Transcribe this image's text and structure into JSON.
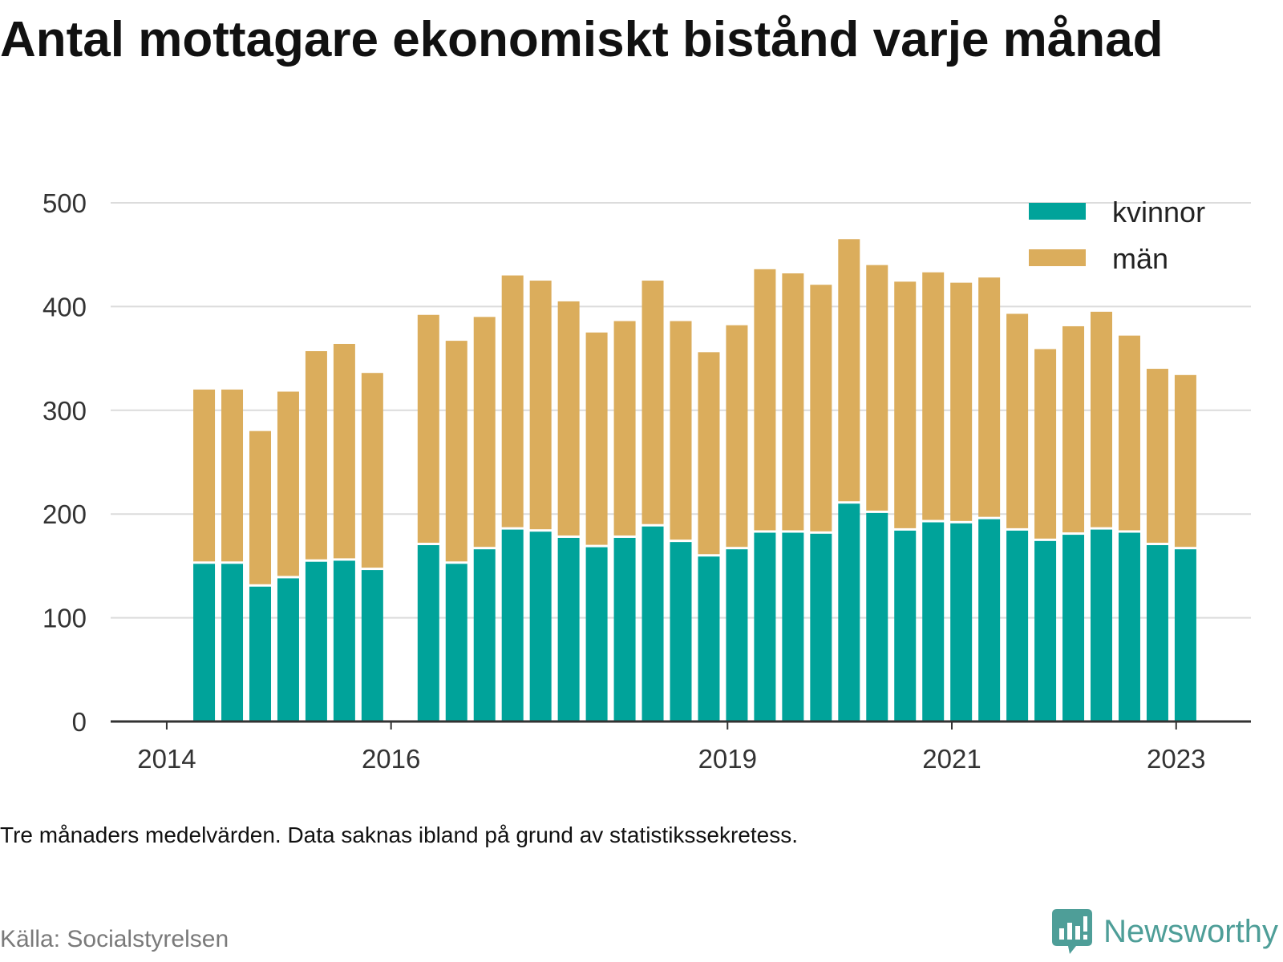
{
  "chart_data": {
    "type": "bar",
    "stacked": true,
    "title": "Antal mottagare ekonomiskt bistånd varje månad",
    "xlabel": "",
    "ylabel": "",
    "x": [
      "2014-05",
      "2014-08",
      "2014-11",
      "2015-02",
      "2015-05",
      "2015-08",
      "2015-11",
      "2016-05",
      "2016-08",
      "2016-11",
      "2017-02",
      "2017-05",
      "2017-08",
      "2017-11",
      "2018-02",
      "2018-05",
      "2018-08",
      "2018-11",
      "2019-02",
      "2019-05",
      "2019-08",
      "2019-11",
      "2020-02",
      "2020-05",
      "2020-08",
      "2020-11",
      "2021-02",
      "2021-05",
      "2021-08",
      "2021-11",
      "2022-02",
      "2022-05",
      "2022-08",
      "2022-11",
      "2023-02"
    ],
    "series": [
      {
        "name": "kvinnor",
        "color": "#00a39a",
        "values": [
          152,
          152,
          130,
          138,
          154,
          155,
          146,
          170,
          152,
          166,
          185,
          183,
          177,
          168,
          177,
          188,
          173,
          159,
          166,
          182,
          182,
          181,
          210,
          201,
          184,
          192,
          191,
          195,
          184,
          174,
          180,
          185,
          182,
          170,
          166
        ]
      },
      {
        "name": "män",
        "color": "#dbad5c",
        "values": [
          168,
          168,
          150,
          180,
          203,
          209,
          190,
          222,
          215,
          224,
          245,
          242,
          228,
          207,
          209,
          237,
          213,
          197,
          216,
          254,
          250,
          240,
          255,
          239,
          240,
          241,
          232,
          233,
          209,
          185,
          201,
          210,
          190,
          170,
          168
        ]
      }
    ],
    "xticks": [
      "2014",
      "2016",
      "2019",
      "2021",
      "2023"
    ],
    "yticks": [
      0,
      100,
      200,
      300,
      400,
      500
    ],
    "xlim": [
      "2013-07",
      "2023-09"
    ],
    "ylim": [
      0,
      500
    ],
    "grid": true,
    "legend": "top-right",
    "grid_color": "#dcdcdc",
    "axis_color": "#333333"
  },
  "footnote": "Tre månaders medelvärden. Data saknas ibland på grund av statistikssekretess.",
  "source": "Källa: Socialstyrelsen",
  "logo": {
    "text": "Newsworthy",
    "icon": "bar-chart-speech-bubble-icon",
    "color": "#4e9e98"
  }
}
